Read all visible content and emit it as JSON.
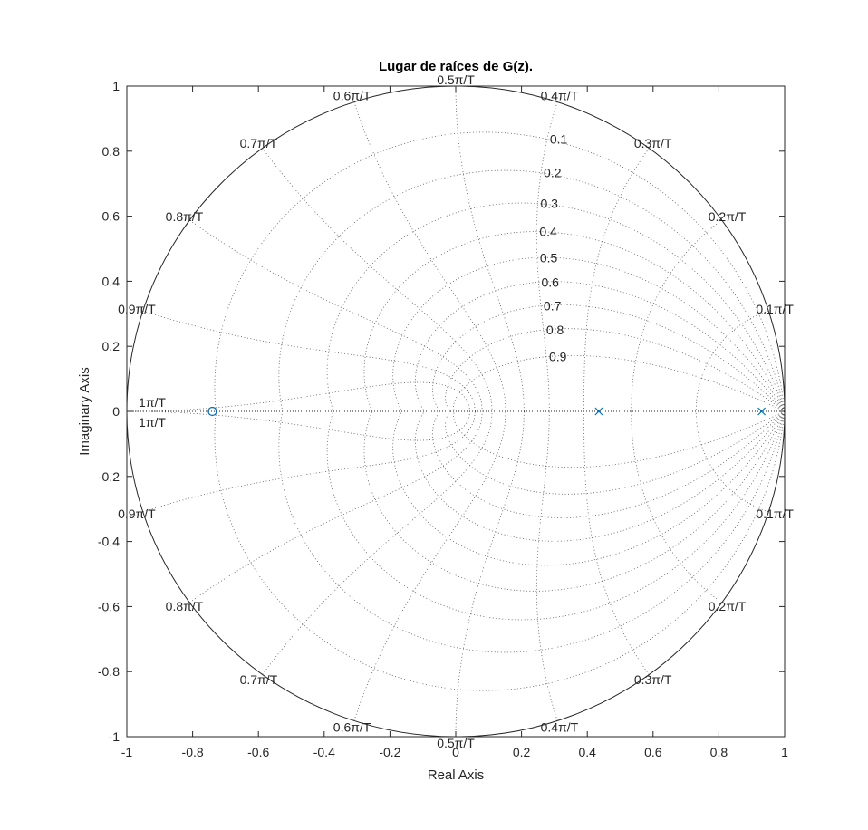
{
  "chart_data": {
    "type": "scatter",
    "title": "Lugar de raíces de G(z).",
    "xlabel": "Real Axis",
    "ylabel": "Imaginary Axis",
    "xlim": [
      -1,
      1
    ],
    "ylim": [
      -1,
      1
    ],
    "x_ticks": [
      -1,
      -0.8,
      -0.6,
      -0.4,
      -0.2,
      0,
      0.2,
      0.4,
      0.6,
      0.8,
      1
    ],
    "x_tick_labels": [
      "-1",
      "-0.8",
      "-0.6",
      "-0.4",
      "-0.2",
      "0",
      "0.2",
      "0.4",
      "0.6",
      "0.8",
      "1"
    ],
    "y_ticks": [
      1,
      0.8,
      0.6,
      0.4,
      0.2,
      0,
      -0.2,
      -0.4,
      -0.6,
      -0.8,
      -1
    ],
    "y_tick_labels": [
      "1",
      "0.8",
      "0.6",
      "0.4",
      "0.2",
      "0",
      "-0.2",
      "-0.4",
      "-0.6",
      "-0.8",
      "-1"
    ],
    "grid": "zgrid",
    "zeta_values": [
      0.1,
      0.2,
      0.3,
      0.4,
      0.5,
      0.6,
      0.7,
      0.8,
      0.9
    ],
    "zeta_labels": [
      "0.1",
      "0.2",
      "0.3",
      "0.4",
      "0.5",
      "0.6",
      "0.7",
      "0.8",
      "0.9"
    ],
    "wn_fractions": [
      0.1,
      0.2,
      0.3,
      0.4,
      0.5,
      0.6,
      0.7,
      0.8,
      0.9,
      1.0
    ],
    "wn_labels": [
      "0.1π/T",
      "0.2π/T",
      "0.3π/T",
      "0.4π/T",
      "0.5π/T",
      "0.6π/T",
      "0.7π/T",
      "0.8π/T",
      "0.9π/T",
      "1π/T"
    ],
    "series": [
      {
        "marker": "x",
        "points": [
          [
            0.435,
            0
          ],
          [
            0.93,
            0
          ]
        ]
      },
      {
        "marker": "o",
        "points": [
          [
            -0.74,
            0
          ]
        ]
      }
    ],
    "colors": {
      "locus": "#0072BD",
      "axes": "#262626",
      "grid": "#262626"
    }
  }
}
